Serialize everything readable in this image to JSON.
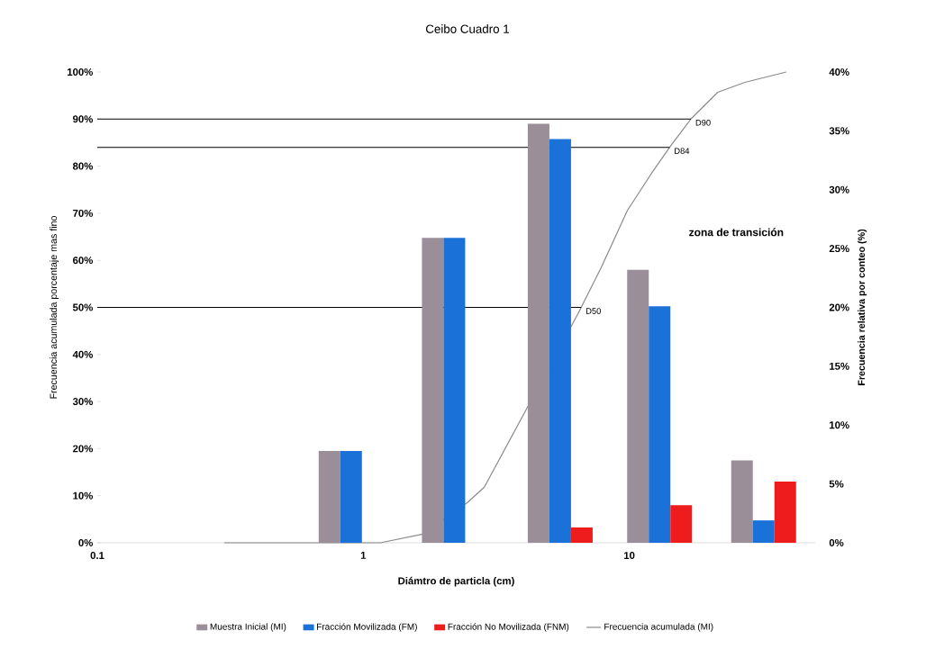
{
  "chart_data": {
    "type": "bar",
    "title": "Ceibo Cuadro 1",
    "xlabel": "Diámtro de particla (cm)",
    "ylabel": "Frecuencia acumulada porcentaje mas fino",
    "y2label": "Frecuencia relativa por conteo (%)",
    "x": [
      0.9,
      2.2,
      5.5,
      13,
      32
    ],
    "series": [
      {
        "name": "Muestra Inicial (MI)",
        "color": "#9a8e98",
        "axis": "y2",
        "values": [
          7.8,
          25.9,
          35.6,
          23.2,
          7.0
        ]
      },
      {
        "name": "Fracción Movilizada (FM)",
        "color": "#1a72d8",
        "axis": "y2",
        "values": [
          7.8,
          25.9,
          34.3,
          20.1,
          1.9
        ]
      },
      {
        "name": "Fracción No Movilizada (FNM)",
        "color": "#ee1c1c",
        "axis": "y2",
        "values": [
          null,
          null,
          1.3,
          3.2,
          5.2
        ]
      },
      {
        "name": "Frecuencia acumulada (MI)",
        "type": "line",
        "color": "#8a8a8a",
        "axis": "y",
        "line_style": "solid",
        "marker": "none",
        "x": [
          0.3,
          0.67,
          1.16,
          1.69,
          2.14,
          2.47,
          2.85,
          4.14,
          5.07,
          6.41,
          7.85,
          9.84,
          12.1,
          14.3,
          17.1,
          21.5,
          27.2,
          38.9
        ],
        "values": [
          0,
          0,
          0,
          1.9,
          null,
          8.6,
          11.8,
          null,
          null,
          48.6,
          58.5,
          70.6,
          78.4,
          84.3,
          90.1,
          95.7,
          97.8,
          100
        ]
      }
    ],
    "log": "x",
    "xlim": [
      0.1,
      50
    ],
    "xticks": [
      0.1,
      1,
      10
    ],
    "ylim": [
      0,
      100
    ],
    "yticks": [
      {
        "value": 0,
        "label": "0%"
      },
      {
        "value": 10,
        "label": "10%"
      },
      {
        "value": 20,
        "label": "20%"
      },
      {
        "value": 30,
        "label": "30%"
      },
      {
        "value": 40,
        "label": "40%"
      },
      {
        "value": 50,
        "label": "50%"
      },
      {
        "value": 60,
        "label": "60%"
      },
      {
        "value": 70,
        "label": "70%"
      },
      {
        "value": 80,
        "label": "80%"
      },
      {
        "value": 90,
        "label": "90%"
      },
      {
        "value": 100,
        "label": "100%"
      }
    ],
    "y2lim": [
      0,
      40
    ],
    "y2ticks": [
      {
        "value": 0,
        "label": "0%"
      },
      {
        "value": 5,
        "label": "5%"
      },
      {
        "value": 10,
        "label": "10%"
      },
      {
        "value": 15,
        "label": "15%"
      },
      {
        "value": 20,
        "label": "20%"
      },
      {
        "value": 25,
        "label": "25%"
      },
      {
        "value": 30,
        "label": "30%"
      },
      {
        "value": 35,
        "label": "35%"
      },
      {
        "value": 40,
        "label": "40%"
      }
    ],
    "ref_lines": [
      {
        "axis": "y",
        "value": 90,
        "label": "D90",
        "color": "#000000"
      },
      {
        "axis": "y",
        "value": 84,
        "label": "D84",
        "color": "#000000"
      },
      {
        "axis": "y",
        "value": 50,
        "label": "D50",
        "color": "#000000"
      }
    ],
    "annotations": [
      "zona de transición"
    ],
    "legend": "bottom"
  }
}
